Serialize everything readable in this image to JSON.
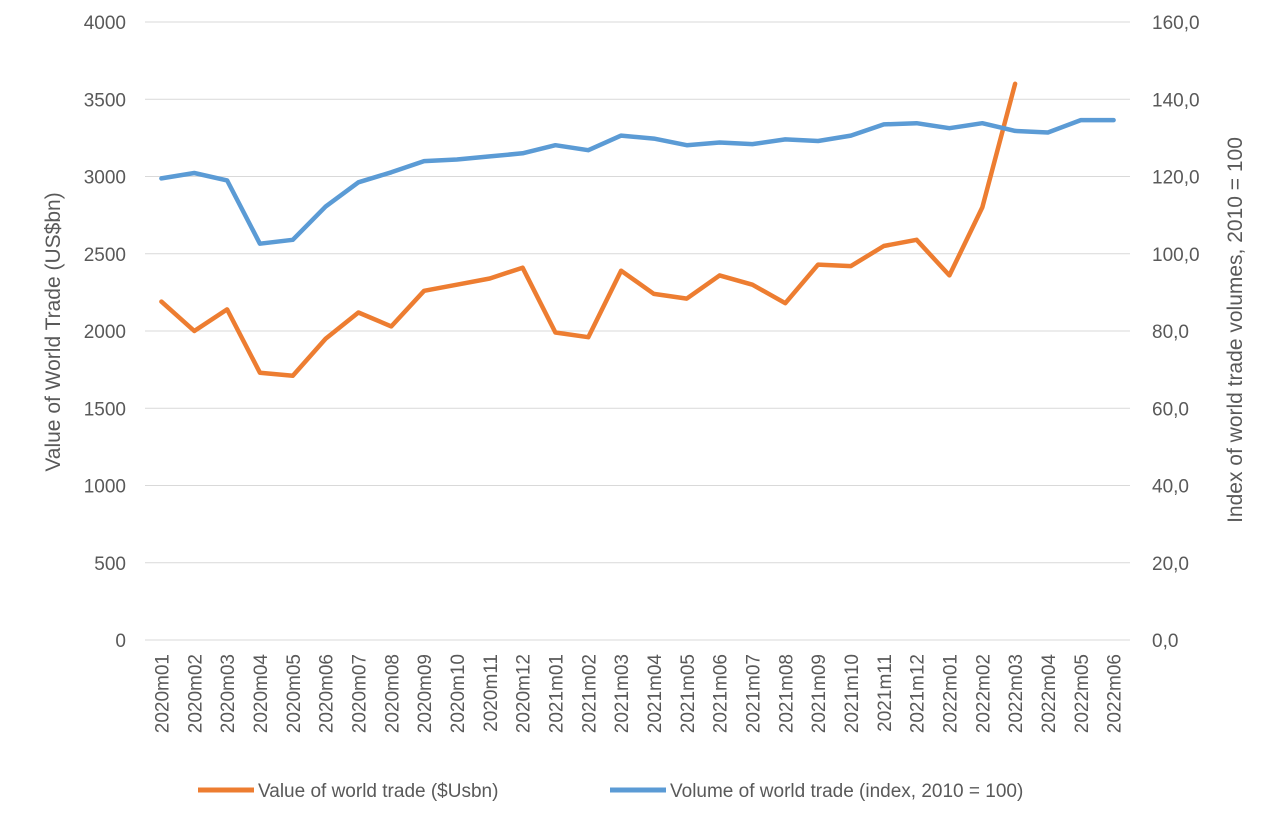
{
  "chart_data": {
    "type": "line",
    "title": "",
    "categories": [
      "2020m01",
      "2020m02",
      "2020m03",
      "2020m04",
      "2020m05",
      "2020m06",
      "2020m07",
      "2020m08",
      "2020m09",
      "2020m10",
      "2020m11",
      "2020m12",
      "2021m01",
      "2021m02",
      "2021m03",
      "2021m04",
      "2021m05",
      "2021m06",
      "2021m07",
      "2021m08",
      "2021m09",
      "2021m10",
      "2021m11",
      "2021m12",
      "2022m01",
      "2022m02",
      "2022m03",
      "2022m04",
      "2022m05",
      "2022m06"
    ],
    "ylabel": "Value of World Trade (US$bn)",
    "y2label": "Index of world trade volumes, 2010 = 100",
    "ylim": [
      0,
      4000
    ],
    "y2lim": [
      0,
      160
    ],
    "yticks": [
      "0",
      "500",
      "1000",
      "1500",
      "2000",
      "2500",
      "3000",
      "3500",
      "4000"
    ],
    "y2ticks": [
      "0,0",
      "20,0",
      "40,0",
      "60,0",
      "80,0",
      "100,0",
      "120,0",
      "140,0",
      "160,0"
    ],
    "grid": true,
    "legend_position": "bottom",
    "series": [
      {
        "name": "Value of world trade ($Usbn)",
        "axis": "left",
        "color": "#ed7d31",
        "values": [
          2190,
          2000,
          2140,
          1730,
          1710,
          1950,
          2120,
          2030,
          2260,
          2300,
          2340,
          2410,
          1990,
          1960,
          2390,
          2240,
          2210,
          2360,
          2300,
          2180,
          2430,
          2420,
          2550,
          2590,
          2360,
          2800,
          3600,
          null,
          null,
          null
        ]
      },
      {
        "name": "Volume of world trade (index, 2010 = 100)",
        "axis": "right",
        "color": "#5b9bd5",
        "values": [
          119.5,
          120.9,
          119.0,
          102.6,
          103.6,
          112.2,
          118.5,
          121.1,
          124.0,
          124.4,
          125.2,
          126.0,
          128.1,
          126.8,
          130.6,
          129.8,
          128.1,
          128.8,
          128.4,
          129.6,
          129.2,
          130.6,
          133.5,
          133.8,
          132.5,
          133.8,
          131.8,
          131.4,
          134.6,
          134.6
        ]
      }
    ]
  }
}
